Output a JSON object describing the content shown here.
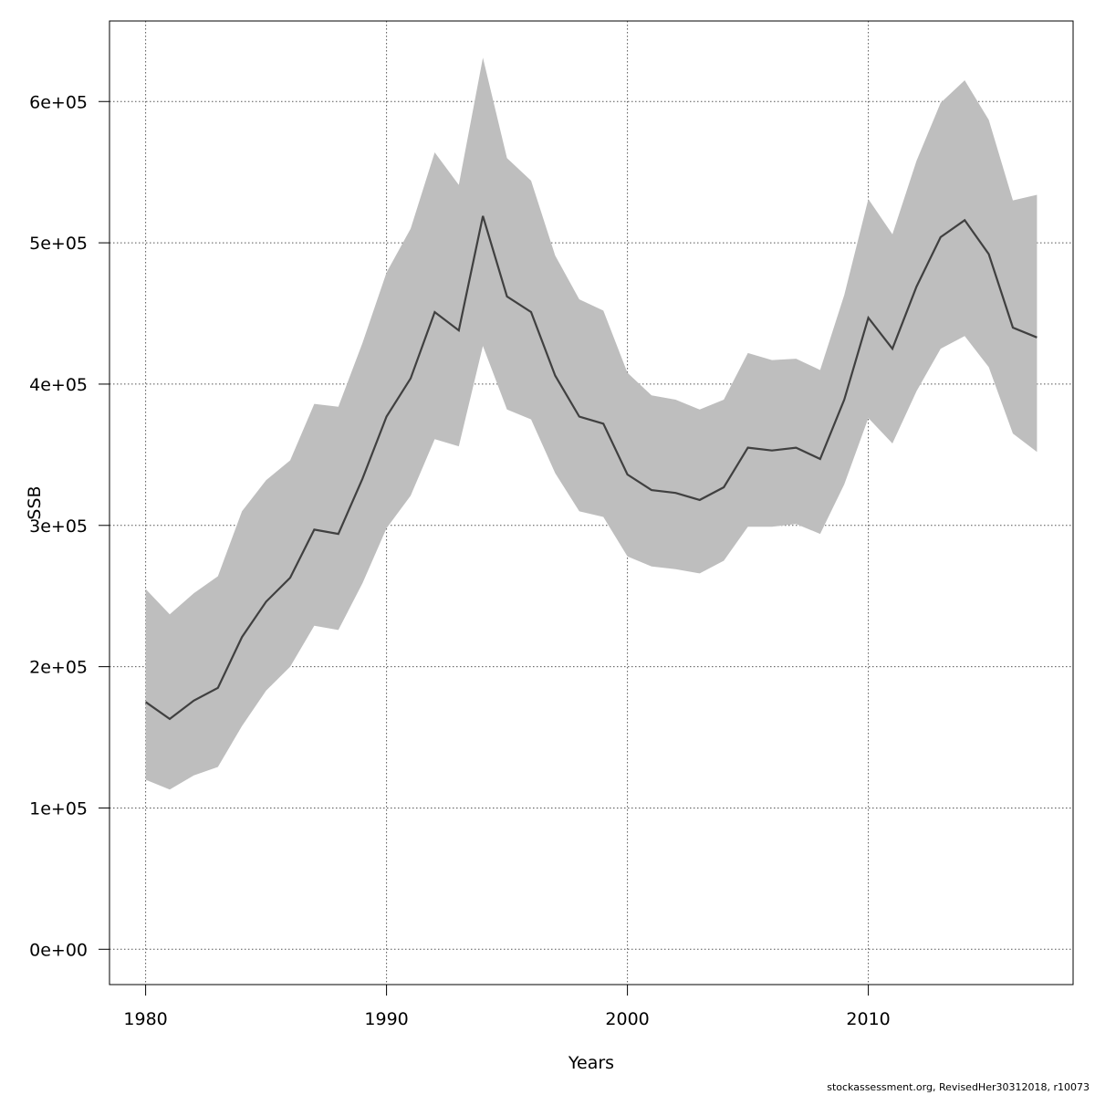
{
  "chart_data": {
    "type": "area",
    "title": "",
    "xlabel": "Years",
    "ylabel": "SSB",
    "xlim": [
      1978.5,
      2018.5
    ],
    "ylim": [
      -25000,
      657000
    ],
    "x_ticks": [
      1980,
      1990,
      2000,
      2010
    ],
    "x_tick_labels": [
      "1980",
      "1990",
      "2000",
      "2010"
    ],
    "y_ticks": [
      0,
      100000,
      200000,
      300000,
      400000,
      500000,
      600000
    ],
    "y_tick_labels": [
      "0e+00",
      "1e+05",
      "2e+05",
      "3e+05",
      "4e+05",
      "5e+05",
      "6e+05"
    ],
    "grid": true,
    "colors": {
      "band": "#bebebe",
      "line": "#404040",
      "grid": "#555555"
    },
    "x": [
      1980,
      1981,
      1982,
      1983,
      1984,
      1985,
      1986,
      1987,
      1988,
      1989,
      1990,
      1991,
      1992,
      1993,
      1994,
      1995,
      1996,
      1997,
      1998,
      1999,
      2000,
      2001,
      2002,
      2003,
      2004,
      2005,
      2006,
      2007,
      2008,
      2009,
      2010,
      2011,
      2012,
      2013,
      2014,
      2015,
      2016,
      2017
    ],
    "series": [
      {
        "name": "",
        "role": "estimate",
        "values": [
          175000,
          163000,
          176000,
          185000,
          221000,
          246000,
          263000,
          297000,
          294000,
          333000,
          377000,
          404000,
          451000,
          438000,
          519000,
          462000,
          451000,
          406000,
          377000,
          372000,
          336000,
          325000,
          323000,
          318000,
          327000,
          355000,
          353000,
          355000,
          347000,
          389000,
          447000,
          425000,
          469000,
          504000,
          516000,
          492000,
          440000,
          433000
        ]
      },
      {
        "name": "",
        "role": "upper",
        "values": [
          255000,
          237000,
          252000,
          264000,
          310000,
          332000,
          346000,
          386000,
          384000,
          429000,
          479000,
          510000,
          564000,
          541000,
          631000,
          560000,
          544000,
          491000,
          460000,
          452000,
          408000,
          392000,
          389000,
          382000,
          389000,
          422000,
          417000,
          418000,
          410000,
          463000,
          531000,
          506000,
          558000,
          599000,
          615000,
          587000,
          530000,
          534000
        ]
      },
      {
        "name": "",
        "role": "lower",
        "values": [
          120000,
          113000,
          123000,
          129000,
          158000,
          183000,
          200000,
          229000,
          226000,
          259000,
          298000,
          321000,
          361000,
          356000,
          427000,
          382000,
          375000,
          337000,
          310000,
          306000,
          278000,
          271000,
          269000,
          266000,
          275000,
          299000,
          299000,
          301000,
          294000,
          329000,
          376000,
          358000,
          395000,
          425000,
          434000,
          412000,
          365000,
          352000
        ]
      }
    ]
  },
  "footer": {
    "text": "stockassessment.org, RevisedHer30312018, r10073"
  }
}
